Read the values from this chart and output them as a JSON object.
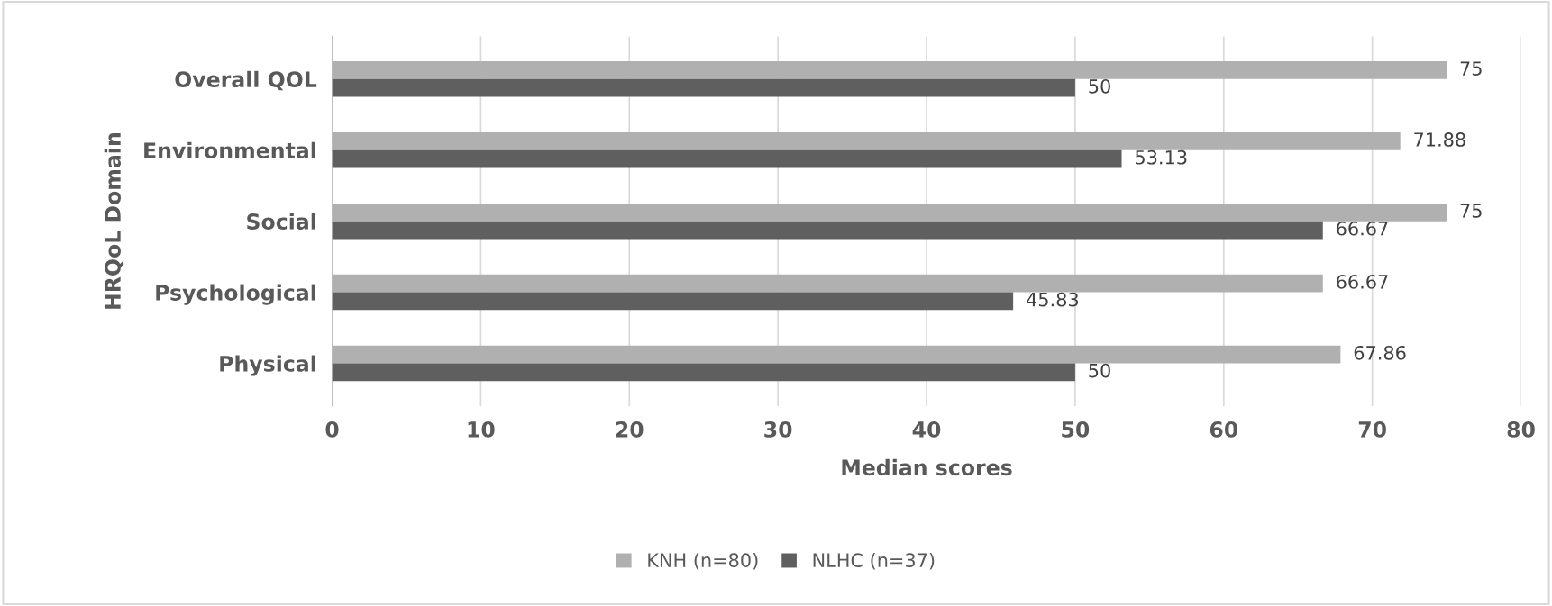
{
  "chart_data": {
    "type": "bar",
    "orientation": "horizontal",
    "xlabel": "Median scores",
    "ylabel": "HRQoL Domain",
    "categories": [
      "Overall QOL",
      "Environmental",
      "Social",
      "Psychological",
      "Physical"
    ],
    "series": [
      {
        "name": "KNH (n=80)",
        "color": "#b0b0b0",
        "values": [
          75,
          71.88,
          75,
          66.67,
          67.86
        ]
      },
      {
        "name": "NLHC (n=37)",
        "color": "#5f5f5f",
        "values": [
          50,
          53.13,
          66.67,
          45.83,
          50
        ]
      }
    ],
    "xlim": [
      0,
      80
    ],
    "xticks": [
      0,
      10,
      20,
      30,
      40,
      50,
      60,
      70,
      80
    ],
    "grid": "x",
    "legend": "bottom",
    "data_labels": true
  }
}
